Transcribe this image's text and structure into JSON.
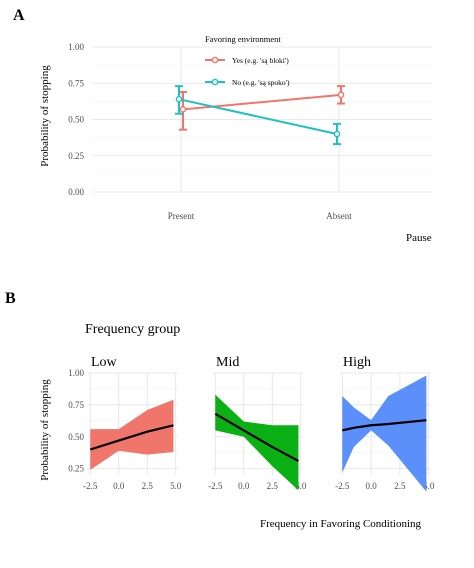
{
  "panel_a": {
    "label": "A",
    "ylabel": "Probability of stopping",
    "xlabel": "Pause",
    "legend_title": "Favoring environment"
  },
  "panel_b": {
    "label": "B",
    "group_title": "Frequency group",
    "ylabel": "Probability of stopping",
    "xlabel": "Frequency in Favoring Conditioning"
  },
  "chart_data": [
    {
      "type": "line",
      "panel": "A",
      "xlabel": "Pause",
      "ylabel": "Probability of stopping",
      "categories": [
        "Present",
        "Absent"
      ],
      "ylim": [
        0,
        1
      ],
      "yticks": [
        "0.00",
        "0.25",
        "0.50",
        "0.75",
        "1.00"
      ],
      "grid": true,
      "legend_title": "Favoring environment",
      "legend_position": "top-center",
      "series": [
        {
          "name": "Yes (e.g. 'są bloki')",
          "color": "#f0766c",
          "values": [
            0.57,
            0.67
          ],
          "lower": [
            0.43,
            0.61
          ],
          "upper": [
            0.69,
            0.73
          ]
        },
        {
          "name": "No (e.g. 'są spoko')",
          "color": "#1fbfc4",
          "values": [
            0.64,
            0.4
          ],
          "lower": [
            0.54,
            0.33
          ],
          "upper": [
            0.73,
            0.47
          ]
        }
      ]
    },
    {
      "type": "line",
      "panel": "B",
      "facet_title": "Frequency group",
      "xlabel": "Frequency in Favoring Conditioning",
      "ylabel": "Probability of stopping",
      "xlim": [
        -2.7,
        5.2
      ],
      "xticks": [
        "-2.5",
        "0.0",
        "2.5",
        "5.0"
      ],
      "ylim": [
        0.2,
        1.0
      ],
      "yticks": [
        "0.25",
        "0.50",
        "0.75",
        "1.00"
      ],
      "grid": true,
      "facets": [
        {
          "name": "Low",
          "fill": "#f0766c",
          "x": [
            -2.5,
            0.0,
            2.5,
            4.8
          ],
          "fit": [
            0.4,
            0.47,
            0.54,
            0.59
          ],
          "lower": [
            0.24,
            0.39,
            0.36,
            0.38
          ],
          "upper": [
            0.56,
            0.56,
            0.71,
            0.79
          ]
        },
        {
          "name": "Mid",
          "fill": "#0bb014",
          "x": [
            -2.5,
            0.0,
            2.5,
            4.8
          ],
          "fit": [
            0.68,
            0.55,
            0.42,
            0.31
          ],
          "lower": [
            0.55,
            0.5,
            0.27,
            0.08
          ],
          "upper": [
            0.83,
            0.62,
            0.59,
            0.59
          ]
        },
        {
          "name": "High",
          "fill": "#5b8ffa",
          "x": [
            -2.5,
            -1.5,
            0.0,
            1.5,
            4.8
          ],
          "fit": [
            0.55,
            0.57,
            0.59,
            0.6,
            0.63
          ],
          "lower": [
            0.22,
            0.42,
            0.55,
            0.43,
            0.07
          ],
          "upper": [
            0.82,
            0.73,
            0.63,
            0.82,
            0.98
          ]
        }
      ]
    }
  ]
}
